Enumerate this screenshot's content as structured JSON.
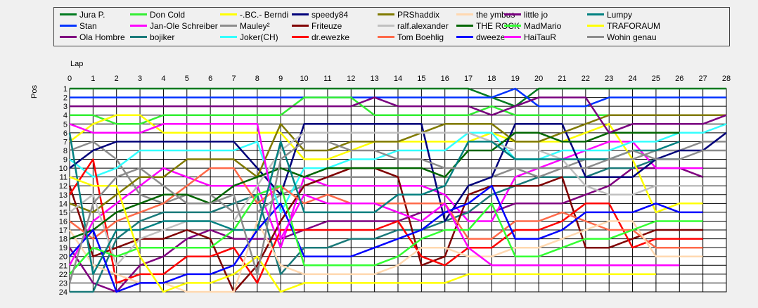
{
  "chart_data": {
    "type": "line",
    "xlabel": "Lap",
    "ylabel": "Pos",
    "xlim": [
      0,
      28
    ],
    "ylim": [
      1,
      24
    ],
    "y_inverted": true,
    "grid": true,
    "legend_position": "top",
    "x_ticks": [
      0,
      1,
      2,
      3,
      4,
      5,
      6,
      7,
      8,
      9,
      10,
      11,
      12,
      13,
      14,
      15,
      16,
      17,
      18,
      19,
      20,
      21,
      22,
      23,
      24,
      25,
      26,
      27,
      28
    ],
    "y_ticks": [
      1,
      2,
      3,
      4,
      5,
      6,
      7,
      8,
      9,
      10,
      11,
      12,
      13,
      14,
      15,
      16,
      17,
      18,
      19,
      20,
      21,
      22,
      23,
      24
    ],
    "series": [
      {
        "name": "Jura P.",
        "color": "#007a1f",
        "values": [
          1,
          1,
          1,
          1,
          1,
          1,
          1,
          1,
          1,
          1,
          1,
          1,
          1,
          1,
          1,
          1,
          1,
          1,
          2,
          3,
          1,
          1,
          1,
          1,
          1,
          1,
          1,
          1,
          1
        ]
      },
      {
        "name": "Stan",
        "color": "#0033ff",
        "values": [
          2,
          2,
          2,
          2,
          2,
          2,
          2,
          2,
          2,
          2,
          2,
          2,
          2,
          2,
          2,
          2,
          2,
          2,
          2,
          1,
          3,
          3,
          3,
          2,
          2,
          2,
          2,
          2,
          2
        ]
      },
      {
        "name": "Ola Hombre",
        "color": "#800080",
        "values": [
          19,
          23,
          24,
          21,
          20,
          18,
          17,
          18,
          18,
          18,
          17,
          16,
          16,
          16,
          16,
          15,
          15,
          15,
          15,
          14,
          14,
          14,
          13,
          12,
          10,
          10,
          10,
          11,
          null
        ]
      },
      {
        "name": "Don Cold",
        "color": "#33ee33",
        "values": [
          4,
          4,
          5,
          5,
          4,
          4,
          4,
          4,
          4,
          4,
          2,
          2,
          2,
          4,
          4,
          4,
          4,
          4,
          3,
          4,
          4,
          4,
          4,
          4,
          4,
          4,
          4,
          4,
          4
        ]
      },
      {
        "name": "Jan-Ole Schreiber",
        "color": "#ff00ff",
        "values": [
          21,
          16,
          14,
          12,
          10,
          11,
          12,
          12,
          12,
          19,
          11,
          12,
          12,
          12,
          12,
          12,
          13,
          16,
          16,
          11,
          10,
          9,
          8,
          7,
          7,
          10,
          10,
          10,
          null
        ]
      },
      {
        "name": "bojiker",
        "color": "#1a7a7a",
        "values": [
          24,
          24,
          18,
          16,
          15,
          15,
          15,
          14,
          13,
          22,
          19,
          19,
          18,
          18,
          17,
          17,
          16,
          15,
          13,
          12,
          11,
          11,
          11,
          10,
          10,
          9,
          9,
          null,
          null
        ]
      },
      {
        "name": "-.BC.- Berndi",
        "color": "#ffff00",
        "values": [
          7,
          5,
          4,
          4,
          6,
          6,
          6,
          6,
          6,
          6,
          9,
          9,
          8,
          7,
          7,
          7,
          7,
          7,
          6,
          7,
          7,
          7,
          6,
          5,
          9,
          15,
          14,
          14,
          null
        ]
      },
      {
        "name": "Mauley²",
        "color": "#8c8c8c",
        "values": [
          8,
          7,
          9,
          13,
          14,
          13,
          13,
          15,
          15,
          13,
          12,
          11,
          11,
          11,
          11,
          11,
          11,
          11,
          11,
          10,
          10,
          10,
          9,
          9,
          9,
          8,
          8,
          7,
          7
        ]
      },
      {
        "name": "Joker(CH)",
        "color": "#33ffff",
        "values": [
          9,
          11,
          10,
          8,
          8,
          8,
          8,
          8,
          7,
          15,
          10,
          10,
          9,
          9,
          8,
          8,
          8,
          6,
          6,
          9,
          9,
          8,
          8,
          8,
          7,
          7,
          6,
          6,
          5
        ]
      },
      {
        "name": "speedy84",
        "color": "#00007a",
        "values": [
          10,
          8,
          7,
          7,
          7,
          7,
          7,
          7,
          10,
          13,
          5,
          5,
          5,
          5,
          5,
          5,
          16,
          12,
          11,
          5,
          5,
          5,
          11,
          11,
          11,
          9,
          8,
          8,
          6
        ]
      },
      {
        "name": "Friteuze",
        "color": "#800000",
        "values": [
          12,
          20,
          19,
          18,
          18,
          17,
          18,
          24,
          21,
          16,
          12,
          11,
          10,
          10,
          11,
          21,
          20,
          13,
          12,
          12,
          12,
          11,
          19,
          19,
          18,
          17,
          17,
          17,
          null
        ]
      },
      {
        "name": "dr.ewezke",
        "color": "#ff0000",
        "values": [
          13,
          9,
          23,
          22,
          22,
          20,
          20,
          19,
          23,
          17,
          17,
          17,
          17,
          17,
          16,
          20,
          21,
          19,
          19,
          17,
          17,
          16,
          14,
          14,
          19,
          18,
          18,
          18,
          null
        ]
      },
      {
        "name": "PRShaddix",
        "color": "#807a00",
        "values": [
          14,
          15,
          13,
          11,
          11,
          9,
          9,
          9,
          11,
          5,
          8,
          8,
          7,
          7,
          7,
          6,
          5,
          5,
          5,
          7,
          7,
          6,
          5,
          4,
          4,
          4,
          4,
          4,
          4
        ]
      },
      {
        "name": "ralf.alexander",
        "color": "#c0c0c0",
        "values": [
          15,
          13,
          21,
          18,
          17,
          16,
          16,
          16,
          12,
          8,
          6,
          6,
          6,
          6,
          6,
          6,
          6,
          6,
          7,
          8,
          8,
          9,
          12,
          13,
          13,
          12,
          12,
          12,
          null
        ]
      },
      {
        "name": "Tom Boehlig",
        "color": "#ff6a4a",
        "values": [
          16,
          18,
          16,
          15,
          14,
          12,
          10,
          10,
          14,
          12,
          14,
          13,
          14,
          14,
          14,
          14,
          14,
          18,
          18,
          16,
          16,
          15,
          16,
          17,
          17,
          19,
          19,
          19,
          null
        ]
      },
      {
        "name": "the ymbus",
        "color": "#ffd8b0",
        "values": [
          17,
          21,
          22,
          23,
          23,
          24,
          24,
          24,
          16,
          21,
          22,
          22,
          22,
          22,
          21,
          19,
          19,
          20,
          20,
          19,
          19,
          18,
          17,
          16,
          16,
          20,
          20,
          20,
          null
        ]
      },
      {
        "name": "THE ROCK",
        "color": "#006600",
        "values": [
          18,
          17,
          15,
          14,
          13,
          13,
          14,
          12,
          11,
          10,
          11,
          10,
          10,
          10,
          10,
          10,
          11,
          8,
          8,
          6,
          6,
          7,
          7,
          6,
          6,
          6,
          6,
          null,
          null
        ]
      },
      {
        "name": "dweeze",
        "color": "#0000ff",
        "values": [
          20,
          17,
          24,
          23,
          23,
          22,
          22,
          21,
          17,
          14,
          20,
          20,
          20,
          19,
          18,
          17,
          15,
          14,
          12,
          18,
          18,
          17,
          15,
          15,
          15,
          14,
          15,
          15,
          null
        ]
      },
      {
        "name": "little jo",
        "color": "#7a0080",
        "values": [
          3,
          3,
          3,
          3,
          3,
          3,
          3,
          3,
          3,
          3,
          3,
          3,
          3,
          2,
          3,
          3,
          3,
          3,
          4,
          3,
          2,
          2,
          2,
          6,
          5,
          5,
          5,
          5,
          4
        ]
      },
      {
        "name": "MadMario",
        "color": "#33ff33",
        "values": [
          22,
          19,
          20,
          19,
          19,
          19,
          19,
          17,
          13,
          12,
          21,
          21,
          21,
          21,
          20,
          18,
          17,
          17,
          14,
          20,
          20,
          19,
          18,
          18,
          17,
          16,
          16,
          16,
          null
        ]
      },
      {
        "name": "HaiTauR",
        "color": "#ff00ff",
        "values": [
          5,
          6,
          6,
          6,
          5,
          5,
          5,
          5,
          5,
          18,
          13,
          14,
          14,
          14,
          15,
          16,
          14,
          19,
          21,
          21,
          21,
          21,
          21,
          21,
          21,
          21,
          21,
          null,
          null
        ]
      },
      {
        "name": "Lumpy",
        "color": "#008080",
        "values": [
          6,
          22,
          17,
          17,
          16,
          16,
          16,
          17,
          17,
          7,
          15,
          15,
          15,
          15,
          13,
          13,
          12,
          7,
          7,
          9,
          9,
          9,
          9,
          9,
          8,
          8,
          7,
          null,
          null
        ]
      },
      {
        "name": "TRAFORAUM",
        "color": "#ffff00",
        "values": [
          11,
          12,
          12,
          20,
          24,
          23,
          23,
          22,
          20,
          24,
          23,
          23,
          23,
          23,
          23,
          23,
          23,
          22,
          22,
          22,
          22,
          22,
          22,
          22,
          22,
          22,
          null,
          null,
          null
        ]
      },
      {
        "name": "Wohin genau",
        "color": "#8c8c8c",
        "values": [
          23,
          14,
          11,
          10,
          12,
          14,
          14,
          13,
          22,
          9,
          7,
          7,
          8,
          8,
          9,
          9,
          10,
          10,
          10,
          10,
          11,
          10,
          10,
          9,
          8,
          9,
          9,
          8,
          8
        ]
      }
    ]
  }
}
